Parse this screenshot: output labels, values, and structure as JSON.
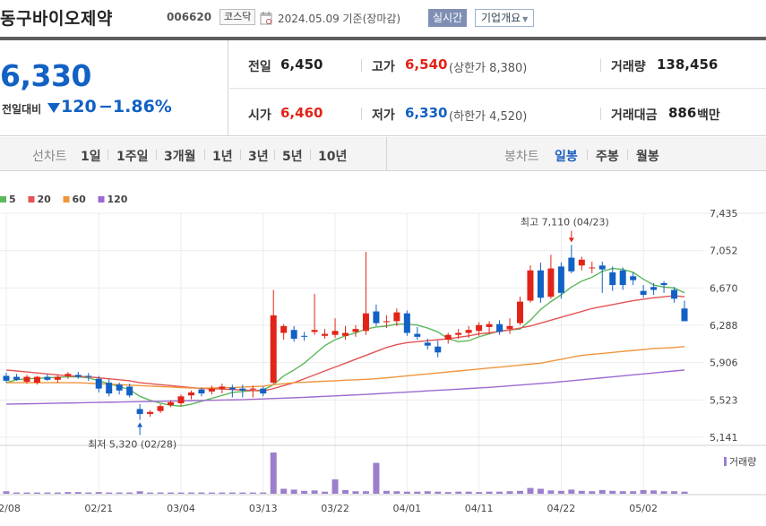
{
  "header": {
    "stock_name": "동구바이오제약",
    "stock_code": "006620",
    "market": "코스닥",
    "date_text": "2024.05.09  기준(장마감)",
    "realtime_label": "실시간",
    "overview_label": "기업개요",
    "calendar_icon": "calendar-icon"
  },
  "summary": {
    "price": "6,330",
    "change_label": "전일대비",
    "change_amount": "120",
    "change_percent": "−1.86%",
    "prev_close_label": "전일",
    "prev_close": "6,450",
    "high_label": "고가",
    "high": "6,540",
    "upper_limit": "(상한가 8,380)",
    "volume_label": "거래량",
    "volume": "138,456",
    "open_label": "시가",
    "open": "6,460",
    "low_label": "저가",
    "low": "6,330",
    "lower_limit": "(하한가 4,520)",
    "value_label": "거래대금",
    "value": "886",
    "value_unit": "백만",
    "colors": {
      "up": "#e22317",
      "down": "#1261c4"
    }
  },
  "tabs": {
    "line_label": "선차트",
    "line_periods": [
      "1일",
      "1주일",
      "3개월",
      "1년",
      "3년",
      "5년",
      "10년"
    ],
    "candle_label": "봉차트",
    "candle_periods": [
      "일봉",
      "주봉",
      "월봉"
    ],
    "active_candle": "일봉"
  },
  "chart_data": {
    "type": "candlestick",
    "ma_legend": [
      {
        "name": "5",
        "color": "#5cb85c"
      },
      {
        "name": "20",
        "color": "#e55353"
      },
      {
        "name": "60",
        "color": "#f0953c"
      },
      {
        "name": "120",
        "color": "#9c6ad0"
      }
    ],
    "y_ticks": [
      "7,435",
      "7,052",
      "6,670",
      "6,288",
      "5,906",
      "5,523",
      "5,141"
    ],
    "y_tick_values": [
      7435,
      7052,
      6670,
      6288,
      5906,
      5523,
      5141
    ],
    "x_labels": [
      {
        "i": 0,
        "label": "02/08"
      },
      {
        "i": 9,
        "label": "02/21"
      },
      {
        "i": 17,
        "label": "03/04"
      },
      {
        "i": 25,
        "label": "03/13"
      },
      {
        "i": 32,
        "label": "03/22"
      },
      {
        "i": 39,
        "label": "04/01"
      },
      {
        "i": 46,
        "label": "04/11"
      },
      {
        "i": 54,
        "label": "04/22"
      },
      {
        "i": 62,
        "label": "05/02"
      }
    ],
    "max_annotation": {
      "text": "최고 7,110 (04/23)",
      "i": 55,
      "value": 7110,
      "color": "#e22317"
    },
    "min_annotation": {
      "text": "최저 5,320 (02/28)",
      "i": 13,
      "value": 5320,
      "color": "#1261c4"
    },
    "volume_legend": "거래량",
    "up_color": "#e22317",
    "down_color": "#1261c4",
    "candles": [
      {
        "o": 5770,
        "h": 5800,
        "l": 5700,
        "c": 5720
      },
      {
        "o": 5760,
        "h": 5790,
        "l": 5720,
        "c": 5730
      },
      {
        "o": 5710,
        "h": 5780,
        "l": 5690,
        "c": 5760
      },
      {
        "o": 5700,
        "h": 5770,
        "l": 5680,
        "c": 5760
      },
      {
        "o": 5760,
        "h": 5790,
        "l": 5720,
        "c": 5730
      },
      {
        "o": 5730,
        "h": 5780,
        "l": 5700,
        "c": 5760
      },
      {
        "o": 5770,
        "h": 5810,
        "l": 5740,
        "c": 5790
      },
      {
        "o": 5780,
        "h": 5810,
        "l": 5740,
        "c": 5760
      },
      {
        "o": 5770,
        "h": 5800,
        "l": 5720,
        "c": 5760
      },
      {
        "o": 5740,
        "h": 5770,
        "l": 5600,
        "c": 5640
      },
      {
        "o": 5700,
        "h": 5740,
        "l": 5560,
        "c": 5590
      },
      {
        "o": 5680,
        "h": 5700,
        "l": 5580,
        "c": 5620
      },
      {
        "o": 5660,
        "h": 5690,
        "l": 5550,
        "c": 5570
      },
      {
        "o": 5430,
        "h": 5480,
        "l": 5320,
        "c": 5380
      },
      {
        "o": 5380,
        "h": 5420,
        "l": 5350,
        "c": 5400
      },
      {
        "o": 5410,
        "h": 5480,
        "l": 5390,
        "c": 5460
      },
      {
        "o": 5470,
        "h": 5520,
        "l": 5450,
        "c": 5500
      },
      {
        "o": 5490,
        "h": 5580,
        "l": 5460,
        "c": 5560
      },
      {
        "o": 5570,
        "h": 5620,
        "l": 5530,
        "c": 5600
      },
      {
        "o": 5630,
        "h": 5650,
        "l": 5560,
        "c": 5590
      },
      {
        "o": 5610,
        "h": 5670,
        "l": 5580,
        "c": 5640
      },
      {
        "o": 5640,
        "h": 5690,
        "l": 5590,
        "c": 5660
      },
      {
        "o": 5650,
        "h": 5680,
        "l": 5550,
        "c": 5630
      },
      {
        "o": 5640,
        "h": 5680,
        "l": 5550,
        "c": 5620
      },
      {
        "o": 5630,
        "h": 5670,
        "l": 5550,
        "c": 5640
      },
      {
        "o": 5640,
        "h": 5660,
        "l": 5560,
        "c": 5590
      },
      {
        "o": 5700,
        "h": 6650,
        "l": 5690,
        "c": 6390
      },
      {
        "o": 6210,
        "h": 6300,
        "l": 6140,
        "c": 6280
      },
      {
        "o": 6240,
        "h": 6280,
        "l": 6120,
        "c": 6150
      },
      {
        "o": 6180,
        "h": 6220,
        "l": 6130,
        "c": 6170
      },
      {
        "o": 6220,
        "h": 6610,
        "l": 6190,
        "c": 6240
      },
      {
        "o": 6180,
        "h": 6250,
        "l": 6150,
        "c": 6200
      },
      {
        "o": 6190,
        "h": 6360,
        "l": 6160,
        "c": 6230
      },
      {
        "o": 6180,
        "h": 6280,
        "l": 6140,
        "c": 6210
      },
      {
        "o": 6220,
        "h": 6290,
        "l": 6170,
        "c": 6250
      },
      {
        "o": 6230,
        "h": 7040,
        "l": 6190,
        "c": 6410
      },
      {
        "o": 6430,
        "h": 6500,
        "l": 6280,
        "c": 6310
      },
      {
        "o": 6320,
        "h": 6390,
        "l": 6260,
        "c": 6330
      },
      {
        "o": 6330,
        "h": 6460,
        "l": 6280,
        "c": 6420
      },
      {
        "o": 6410,
        "h": 6440,
        "l": 6180,
        "c": 6210
      },
      {
        "o": 6200,
        "h": 6270,
        "l": 6140,
        "c": 6170
      },
      {
        "o": 6110,
        "h": 6150,
        "l": 6040,
        "c": 6080
      },
      {
        "o": 6070,
        "h": 6130,
        "l": 5960,
        "c": 6010
      },
      {
        "o": 6140,
        "h": 6210,
        "l": 6100,
        "c": 6190
      },
      {
        "o": 6190,
        "h": 6250,
        "l": 6150,
        "c": 6210
      },
      {
        "o": 6210,
        "h": 6280,
        "l": 6160,
        "c": 6240
      },
      {
        "o": 6230,
        "h": 6320,
        "l": 6180,
        "c": 6290
      },
      {
        "o": 6270,
        "h": 6330,
        "l": 6200,
        "c": 6300
      },
      {
        "o": 6300,
        "h": 6340,
        "l": 6190,
        "c": 6220
      },
      {
        "o": 6250,
        "h": 6360,
        "l": 6200,
        "c": 6280
      },
      {
        "o": 6310,
        "h": 6580,
        "l": 6290,
        "c": 6530
      },
      {
        "o": 6540,
        "h": 6900,
        "l": 6520,
        "c": 6850
      },
      {
        "o": 6850,
        "h": 6930,
        "l": 6520,
        "c": 6570
      },
      {
        "o": 6580,
        "h": 7010,
        "l": 6560,
        "c": 6870
      },
      {
        "o": 6890,
        "h": 6930,
        "l": 6560,
        "c": 6620
      },
      {
        "o": 6980,
        "h": 7110,
        "l": 6820,
        "c": 6840
      },
      {
        "o": 6900,
        "h": 6990,
        "l": 6850,
        "c": 6960
      },
      {
        "o": 6880,
        "h": 6940,
        "l": 6820,
        "c": 6880
      },
      {
        "o": 6900,
        "h": 6940,
        "l": 6620,
        "c": 6860
      },
      {
        "o": 6830,
        "h": 6890,
        "l": 6640,
        "c": 6700
      },
      {
        "o": 6850,
        "h": 6880,
        "l": 6650,
        "c": 6700
      },
      {
        "o": 6790,
        "h": 6830,
        "l": 6700,
        "c": 6750
      },
      {
        "o": 6640,
        "h": 6700,
        "l": 6570,
        "c": 6600
      },
      {
        "o": 6680,
        "h": 6720,
        "l": 6600,
        "c": 6650
      },
      {
        "o": 6720,
        "h": 6740,
        "l": 6620,
        "c": 6700
      },
      {
        "o": 6650,
        "h": 6680,
        "l": 6520,
        "c": 6560
      },
      {
        "o": 6460,
        "h": 6540,
        "l": 6330,
        "c": 6330
      }
    ],
    "volumes": [
      6,
      3,
      3,
      3,
      3,
      3,
      4,
      4,
      3,
      4,
      3,
      3,
      3,
      6,
      3,
      3,
      3,
      3,
      3,
      3,
      3,
      3,
      3,
      3,
      3,
      3,
      100,
      12,
      10,
      7,
      8,
      5,
      35,
      9,
      6,
      6,
      75,
      7,
      6,
      5,
      5,
      6,
      5,
      4,
      5,
      5,
      4,
      5,
      5,
      6,
      7,
      14,
      12,
      8,
      7,
      10,
      7,
      6,
      9,
      7,
      6,
      6,
      9,
      8,
      6,
      6,
      5
    ],
    "ma_values": {
      "ma5": [
        5700,
        5730,
        5740,
        5745,
        5750,
        5755,
        5760,
        5760,
        5750,
        5720,
        5690,
        5660,
        5630,
        5560,
        5520,
        5490,
        5470,
        5460,
        5480,
        5510,
        5540,
        5570,
        5600,
        5610,
        5620,
        5625,
        5680,
        5770,
        5830,
        5900,
        5990,
        6080,
        6140,
        6180,
        6210,
        6250,
        6270,
        6280,
        6300,
        6300,
        6290,
        6260,
        6220,
        6150,
        6120,
        6130,
        6170,
        6200,
        6230,
        6240,
        6250,
        6340,
        6450,
        6530,
        6600,
        6680,
        6740,
        6780,
        6840,
        6870,
        6860,
        6830,
        6760,
        6700,
        6680,
        6670,
        6620
      ],
      "ma20": [
        5830,
        5820,
        5810,
        5800,
        5790,
        5780,
        5770,
        5765,
        5760,
        5750,
        5740,
        5730,
        5720,
        5700,
        5690,
        5680,
        5670,
        5660,
        5650,
        5640,
        5640,
        5635,
        5630,
        5625,
        5620,
        5615,
        5640,
        5670,
        5700,
        5740,
        5780,
        5820,
        5860,
        5900,
        5940,
        5980,
        6020,
        6060,
        6090,
        6110,
        6120,
        6130,
        6140,
        6150,
        6165,
        6180,
        6200,
        6210,
        6225,
        6240,
        6260,
        6280,
        6310,
        6340,
        6370,
        6400,
        6430,
        6460,
        6480,
        6500,
        6520,
        6540,
        6555,
        6570,
        6580,
        6590,
        6580
      ],
      "ma60": [
        5700,
        5700,
        5700,
        5700,
        5700,
        5700,
        5700,
        5700,
        5695,
        5690,
        5685,
        5680,
        5675,
        5670,
        5665,
        5660,
        5655,
        5650,
        5645,
        5645,
        5645,
        5650,
        5650,
        5655,
        5660,
        5665,
        5680,
        5690,
        5700,
        5705,
        5710,
        5715,
        5720,
        5725,
        5730,
        5735,
        5740,
        5750,
        5760,
        5770,
        5780,
        5790,
        5800,
        5810,
        5820,
        5830,
        5840,
        5850,
        5860,
        5870,
        5880,
        5890,
        5900,
        5920,
        5940,
        5960,
        5980,
        5990,
        6000,
        6010,
        6020,
        6030,
        6040,
        6050,
        6055,
        6060,
        6070
      ],
      "ma120": [
        5480,
        5482,
        5484,
        5486,
        5488,
        5490,
        5492,
        5494,
        5496,
        5498,
        5500,
        5502,
        5504,
        5506,
        5508,
        5510,
        5512,
        5514,
        5516,
        5518,
        5520,
        5522,
        5524,
        5526,
        5530,
        5534,
        5538,
        5542,
        5546,
        5550,
        5555,
        5560,
        5565,
        5570,
        5575,
        5580,
        5586,
        5592,
        5598,
        5604,
        5610,
        5616,
        5622,
        5628,
        5634,
        5640,
        5646,
        5652,
        5660,
        5668,
        5676,
        5684,
        5692,
        5700,
        5710,
        5720,
        5730,
        5740,
        5750,
        5760,
        5770,
        5780,
        5790,
        5800,
        5810,
        5820,
        5830
      ]
    }
  }
}
